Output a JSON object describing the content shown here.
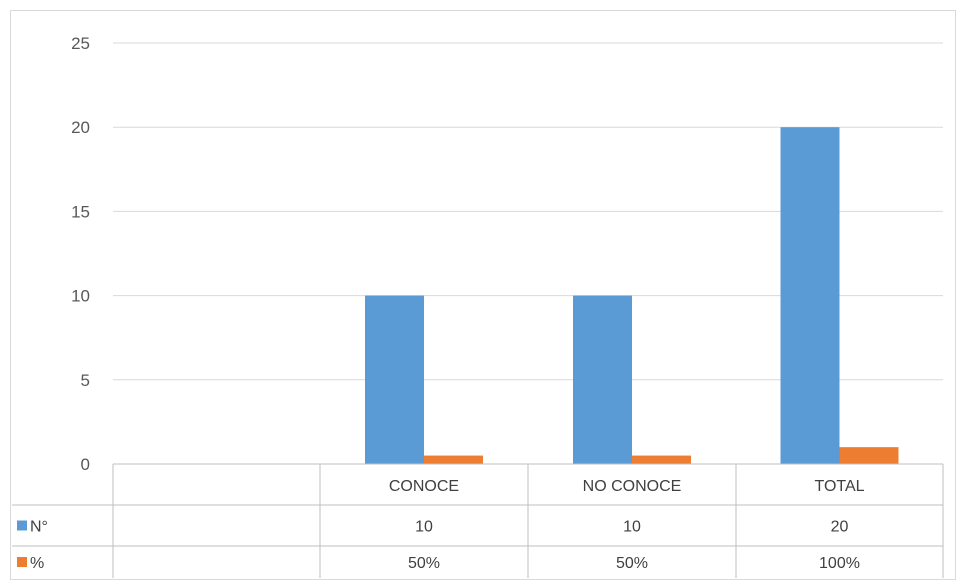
{
  "chart_data": {
    "type": "bar",
    "categories": [
      "",
      "CONOCE",
      "NO CONOCE",
      "TOTAL"
    ],
    "series": [
      {
        "name": "N°",
        "values": [
          null,
          10,
          10,
          20
        ],
        "labels": [
          "",
          "10",
          "10",
          "20"
        ],
        "color": "#5b9bd5"
      },
      {
        "name": "%",
        "values": [
          null,
          0.5,
          0.5,
          1.0
        ],
        "labels": [
          "",
          "50%",
          "50%",
          "100%"
        ],
        "color": "#ed7d31"
      }
    ],
    "ylim": [
      0,
      25
    ],
    "yticks": [
      0,
      5,
      10,
      15,
      20,
      25
    ],
    "grid": true,
    "legend": "data-table"
  }
}
